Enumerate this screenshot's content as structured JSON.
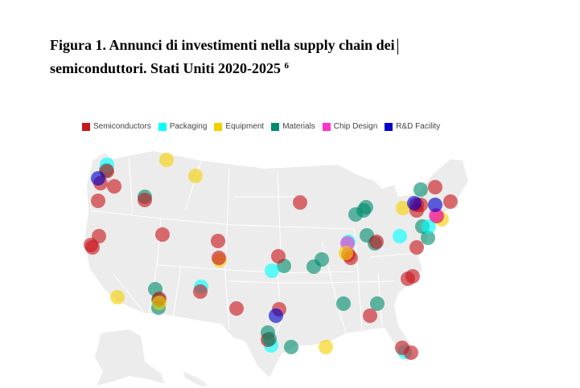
{
  "document": {
    "title_line1": "Figura 1. Annunci di investimenti nella supply chain dei",
    "title_line2": "semiconduttori. Stati Uniti 2020-2025",
    "footnote_ref": "6"
  },
  "legend": [
    {
      "label": "Semiconductors",
      "color": "#c8161d"
    },
    {
      "label": "Packaging",
      "color": "#00ffff"
    },
    {
      "label": "Equipment",
      "color": "#f5d000"
    },
    {
      "label": "Materials",
      "color": "#008c6e"
    },
    {
      "label": "Chip Design",
      "color": "#ff33cc"
    },
    {
      "label": "R&D Facility",
      "color": "#0000cc"
    }
  ],
  "map": {
    "land_color": "#ececec",
    "border_color": "#ffffff"
  }
}
